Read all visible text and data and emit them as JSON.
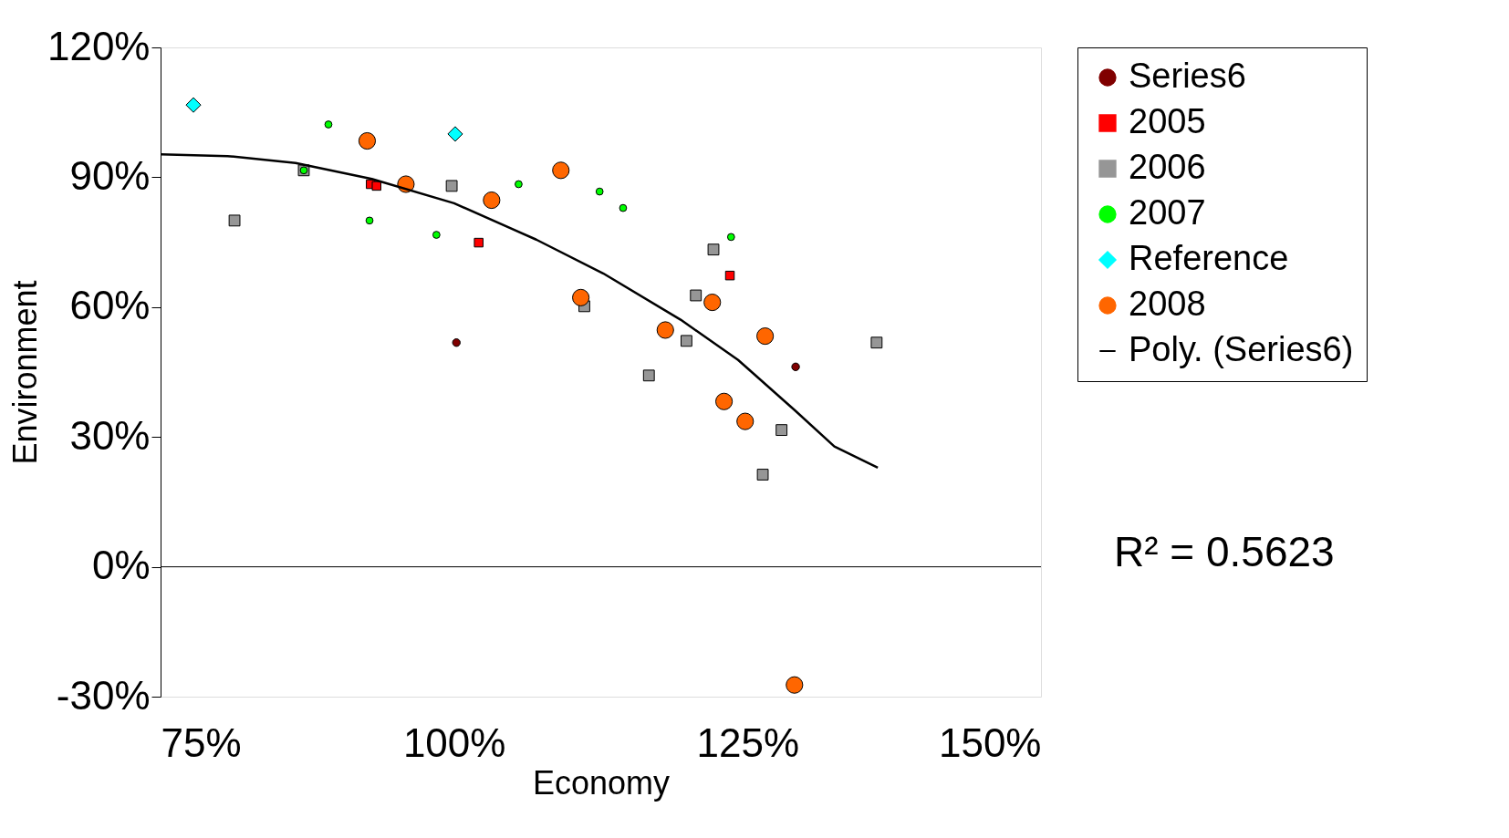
{
  "chart_data": {
    "type": "scatter",
    "xlabel": "Economy",
    "ylabel": "Environment",
    "xlim": [
      75,
      150
    ],
    "xticks": [
      {
        "value": 75,
        "label": "75%"
      },
      {
        "value": 100,
        "label": "100%"
      },
      {
        "value": 125,
        "label": "125%"
      },
      {
        "value": 150,
        "label": "150%"
      }
    ],
    "ylim": [
      -30,
      120
    ],
    "yticks": [
      {
        "value": -30,
        "label": "-30%"
      },
      {
        "value": 0,
        "label": "0%"
      },
      {
        "value": 30,
        "label": "30%"
      },
      {
        "value": 60,
        "label": "60%"
      },
      {
        "value": 90,
        "label": "90%"
      },
      {
        "value": 120,
        "label": "120%"
      }
    ],
    "grid": false,
    "legend": "right",
    "ref_lines": [
      {
        "axis": "y",
        "value": 0,
        "color": "#000000"
      }
    ],
    "annotations": [
      "R² = 0.5623"
    ],
    "series": [
      {
        "name": "Series6",
        "color": "#800000",
        "marker": "circle",
        "x": [
          100.2,
          129.1
        ],
        "values": [
          51.8,
          46.2
        ]
      },
      {
        "name": "2005",
        "color": "#ff0000",
        "marker": "square",
        "x": [
          92.9,
          93.4,
          102.1,
          123.5
        ],
        "values": [
          88.4,
          88,
          74.9,
          67.3
        ]
      },
      {
        "name": "2006",
        "color": "#969696",
        "marker": "square",
        "x": [
          81.3,
          87.2,
          99.8,
          111.1,
          122.1,
          120.6,
          119.8,
          116.6,
          127.9,
          126.3,
          136
        ],
        "values": [
          80,
          91.6,
          88,
          60.2,
          73.3,
          62.7,
          52.2,
          44.2,
          31.6,
          21.3,
          51.8
        ]
      },
      {
        "name": "2007",
        "color": "#00ff00",
        "marker": "circle",
        "x": [
          87.2,
          89.3,
          92.8,
          98.5,
          105.5,
          112.4,
          114.4,
          123.6
        ],
        "values": [
          91.6,
          102.2,
          80,
          76.7,
          88.4,
          86.7,
          82.9,
          76.2
        ]
      },
      {
        "name": "Reference",
        "color": "#00ffff",
        "marker": "diamond",
        "x": [
          77.8,
          100.1
        ],
        "values": [
          106.7,
          100
        ]
      },
      {
        "name": "2008",
        "color": "#ff6600",
        "marker": "circle",
        "x": [
          92.6,
          95.9,
          103.2,
          109.1,
          110.8,
          118,
          122,
          123,
          124.8,
          126.5,
          129
        ],
        "values": [
          98.4,
          88.4,
          84.7,
          91.6,
          62.2,
          54.7,
          61.1,
          38.2,
          33.6,
          53.3,
          -27.3
        ]
      },
      {
        "name": "Poly. (Series6)",
        "type": "line",
        "color": "#000000",
        "line_style": "solid",
        "x": [
          75,
          80.7,
          86.5,
          93,
          100,
          107,
          112.7,
          119.3,
          124.2,
          129.1,
          132.4,
          136.1
        ],
        "values": [
          95.3,
          94.9,
          93.3,
          89.6,
          84,
          75.6,
          67.8,
          57.1,
          47.8,
          36,
          27.8,
          22.9
        ]
      }
    ]
  }
}
